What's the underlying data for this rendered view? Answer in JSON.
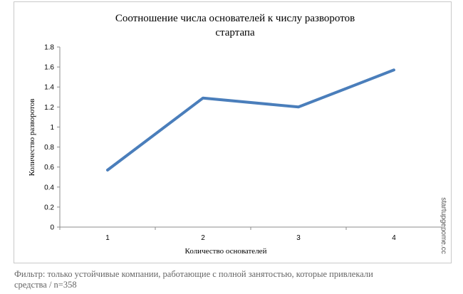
{
  "chart_data": {
    "type": "line",
    "title_lines": [
      "Соотношение числа основателей  к числу разворотов",
      "стартапа"
    ],
    "xlabel": "Количество основателей",
    "ylabel": "Количество разворотов",
    "categories": [
      "1",
      "2",
      "3",
      "4"
    ],
    "series": [
      {
        "values": [
          0.57,
          1.29,
          1.2,
          1.57
        ]
      }
    ],
    "ylim": [
      0,
      1.8
    ],
    "yticks": [
      "0",
      "0.2",
      "0.4",
      "0.6",
      "0.8",
      "1",
      "1.2",
      "1.4",
      "1.6",
      "1.8"
    ],
    "grid": false,
    "line_color": "#4a7ebb",
    "watermark": "startupgenome.cc"
  },
  "caption": {
    "line1": "Фильтр: только устойчивые компании, работающие с полной занятостью, которые привлекали",
    "line2": "средства  / n=358"
  }
}
